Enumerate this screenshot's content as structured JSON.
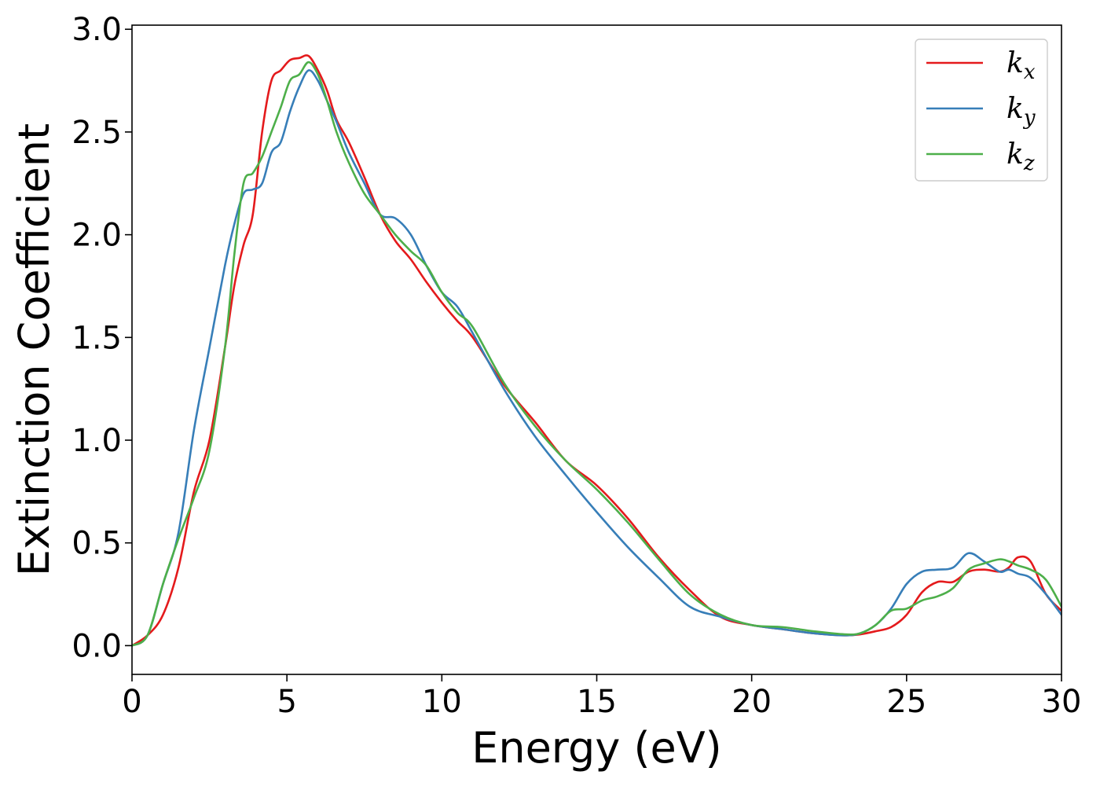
{
  "chart_data": {
    "type": "line",
    "title": "",
    "xlabel": "Energy (eV)",
    "ylabel": "Extinction Coefficient",
    "xlim": [
      0,
      30
    ],
    "ylim": [
      -0.14,
      3.02
    ],
    "xticks": [
      0,
      5,
      10,
      15,
      20,
      25,
      30
    ],
    "xtick_labels": [
      "0",
      "5",
      "10",
      "15",
      "20",
      "25",
      "30"
    ],
    "yticks": [
      0.0,
      0.5,
      1.0,
      1.5,
      2.0,
      2.5,
      3.0
    ],
    "ytick_labels": [
      "0.0",
      "0.5",
      "1.0",
      "1.5",
      "2.0",
      "2.5",
      "3.0"
    ],
    "grid": false,
    "legend_position": "top-right",
    "series": [
      {
        "name": "k",
        "subscript": "x",
        "color": "#e41a1c",
        "x": [
          0,
          0.5,
          1,
          1.5,
          2,
          2.5,
          3,
          3.3,
          3.6,
          3.9,
          4.2,
          4.5,
          4.8,
          5.1,
          5.4,
          5.7,
          6.0,
          6.3,
          6.6,
          7.0,
          7.5,
          8,
          8.5,
          9,
          9.5,
          10,
          10.5,
          11,
          12,
          13,
          14,
          15,
          16,
          17,
          18,
          19,
          20,
          21,
          22,
          23,
          23.5,
          24,
          24.5,
          25,
          25.5,
          26,
          26.5,
          27,
          27.5,
          28,
          28.3,
          28.6,
          29,
          29.5,
          30
        ],
        "y": [
          0.0,
          0.05,
          0.15,
          0.38,
          0.75,
          1.0,
          1.45,
          1.75,
          1.95,
          2.1,
          2.5,
          2.75,
          2.8,
          2.85,
          2.86,
          2.87,
          2.8,
          2.7,
          2.56,
          2.45,
          2.28,
          2.1,
          1.97,
          1.88,
          1.77,
          1.67,
          1.58,
          1.5,
          1.27,
          1.09,
          0.9,
          0.78,
          0.62,
          0.43,
          0.27,
          0.14,
          0.1,
          0.08,
          0.06,
          0.05,
          0.055,
          0.07,
          0.09,
          0.15,
          0.26,
          0.31,
          0.31,
          0.36,
          0.37,
          0.36,
          0.38,
          0.43,
          0.41,
          0.25,
          0.17
        ]
      },
      {
        "name": "k",
        "subscript": "y",
        "color": "#377eb8",
        "x": [
          0,
          0.5,
          1,
          1.5,
          2,
          2.5,
          3,
          3.3,
          3.6,
          3.9,
          4.2,
          4.5,
          4.8,
          5.1,
          5.4,
          5.7,
          6.0,
          6.3,
          6.6,
          7.0,
          7.5,
          8,
          8.5,
          9,
          9.5,
          10,
          10.5,
          11,
          12,
          13,
          14,
          15,
          16,
          17,
          18,
          19,
          20,
          21,
          22,
          23,
          23.5,
          24,
          24.5,
          25,
          25.5,
          26,
          26.5,
          27,
          27.5,
          28,
          28.3,
          28.6,
          29,
          29.5,
          30
        ],
        "y": [
          0.0,
          0.05,
          0.3,
          0.55,
          1.05,
          1.45,
          1.85,
          2.05,
          2.2,
          2.22,
          2.25,
          2.4,
          2.45,
          2.6,
          2.72,
          2.8,
          2.75,
          2.65,
          2.55,
          2.4,
          2.25,
          2.1,
          2.08,
          2.0,
          1.85,
          1.72,
          1.65,
          1.52,
          1.25,
          1.02,
          0.83,
          0.65,
          0.48,
          0.33,
          0.19,
          0.14,
          0.1,
          0.08,
          0.06,
          0.05,
          0.06,
          0.1,
          0.18,
          0.3,
          0.36,
          0.37,
          0.38,
          0.45,
          0.41,
          0.36,
          0.37,
          0.35,
          0.33,
          0.25,
          0.15
        ]
      },
      {
        "name": "k",
        "subscript": "z",
        "color": "#4daf4a",
        "x": [
          0,
          0.5,
          1,
          1.5,
          2,
          2.5,
          3,
          3.3,
          3.6,
          3.9,
          4.2,
          4.5,
          4.8,
          5.1,
          5.4,
          5.7,
          6.0,
          6.3,
          6.6,
          7.0,
          7.5,
          8,
          8.5,
          9,
          9.5,
          10,
          10.5,
          11,
          12,
          13,
          14,
          15,
          16,
          17,
          18,
          19,
          20,
          21,
          22,
          23,
          23.5,
          24,
          24.5,
          25,
          25.5,
          26,
          26.5,
          27,
          27.5,
          28,
          28.3,
          28.6,
          29,
          29.5,
          30
        ],
        "y": [
          0.0,
          0.05,
          0.3,
          0.52,
          0.72,
          0.95,
          1.45,
          1.9,
          2.25,
          2.3,
          2.38,
          2.5,
          2.62,
          2.75,
          2.78,
          2.84,
          2.78,
          2.65,
          2.5,
          2.35,
          2.2,
          2.1,
          2.0,
          1.92,
          1.85,
          1.72,
          1.62,
          1.55,
          1.28,
          1.07,
          0.9,
          0.76,
          0.6,
          0.42,
          0.25,
          0.15,
          0.1,
          0.09,
          0.07,
          0.055,
          0.06,
          0.1,
          0.17,
          0.18,
          0.22,
          0.24,
          0.28,
          0.37,
          0.4,
          0.42,
          0.41,
          0.39,
          0.37,
          0.32,
          0.19
        ]
      }
    ]
  }
}
